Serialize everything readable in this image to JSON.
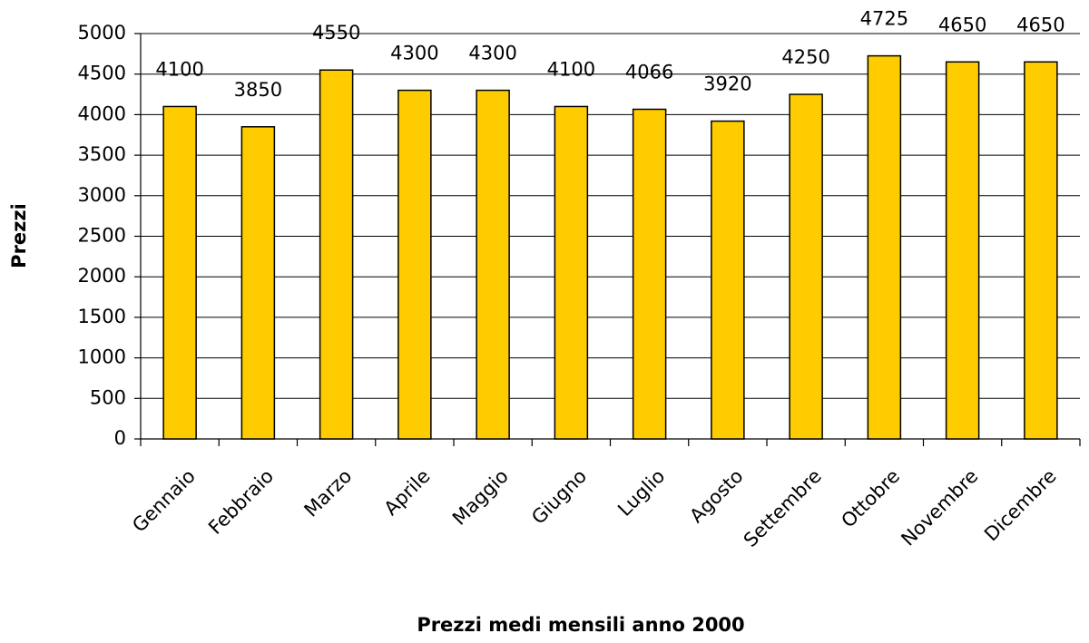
{
  "chart_data": {
    "type": "bar",
    "x_label": "Prezzi medi mensili anno 2000",
    "y_label": "Prezzi",
    "categories": [
      "Gennaio",
      "Febbraio",
      "Marzo",
      "Aprile",
      "Maggio",
      "Giugno",
      "Luglio",
      "Agosto",
      "Settembre",
      "Ottobre",
      "Novembre",
      "Dicembre"
    ],
    "values": [
      4100,
      3850,
      4550,
      4300,
      4300,
      4100,
      4066,
      3920,
      4250,
      4725,
      4650,
      4650
    ],
    "color": "#ffcc00",
    "ylim": [
      0,
      5000
    ],
    "yticks": [
      0,
      500,
      1000,
      1500,
      2000,
      2500,
      3000,
      3500,
      4000,
      4500,
      5000
    ],
    "grid": true
  }
}
